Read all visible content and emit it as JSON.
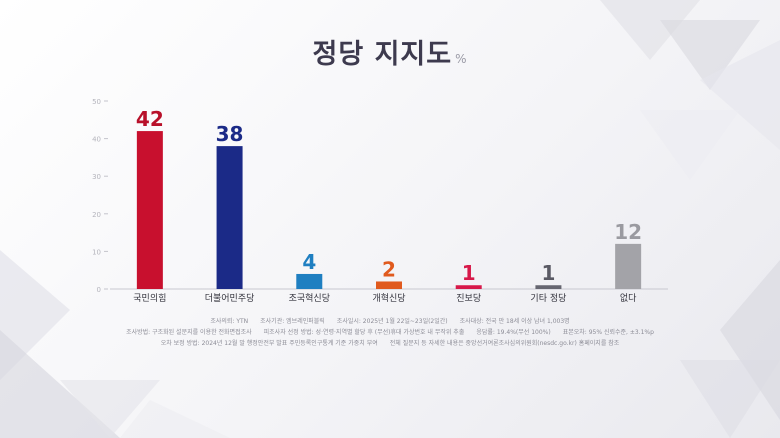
{
  "title": "정당 지지도",
  "unit": "%",
  "chart_data": {
    "type": "bar",
    "categories": [
      "국민의힘",
      "더불어민주당",
      "조국혁신당",
      "개혁신당",
      "진보당",
      "기타 정당",
      "없다"
    ],
    "values": [
      42,
      38,
      4,
      2,
      1,
      1,
      12
    ],
    "value_labels": [
      "42",
      "38",
      "4",
      "2",
      "1",
      "1",
      "12"
    ],
    "colors": [
      "#c8102e",
      "#1b2a87",
      "#1f7fc1",
      "#e05a1e",
      "#d7194a",
      "#666670",
      "#a3a3a8"
    ],
    "label_colors": [
      "#b8102a",
      "#1b2a87",
      "#1f7fc1",
      "#e05a1e",
      "#d7194a",
      "#5a5a64",
      "#9a9aa0"
    ],
    "ylim": [
      0,
      50
    ],
    "yticks": [
      "0",
      "10",
      "20",
      "30",
      "40",
      "50"
    ],
    "grid": false
  },
  "footer": {
    "line1": [
      "조사의뢰: YTN",
      "조사기관: 엠브레인퍼블릭",
      "조사일시: 2025년 1월 22일~23일(2일간)",
      "조사대상: 전국 만 18세 이상 남녀 1,003명"
    ],
    "line2": [
      "조사방법: 구조화된 설문지를 이용한 전화면접조사",
      "피조사자 선정 방법: 성·연령·지역별 할당 후 (무선)휴대 가상번호 내 무작위 추출",
      "응답률: 19.4%(무선 100%)",
      "표본오차: 95% 신뢰수준, ±3.1%p"
    ],
    "line3": [
      "오차 보정 방법: 2024년 12월 말 행정안전부 발표 주민등록인구통계 기준 가중치 부여",
      "전체 질문지 등 자세한 내용은 중앙선거여론조사심의위원회(nesdc.go.kr) 홈페이지를 참조"
    ]
  }
}
